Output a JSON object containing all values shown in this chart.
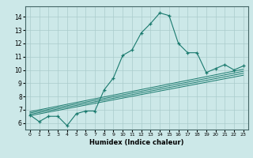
{
  "title": "",
  "xlabel": "Humidex (Indice chaleur)",
  "bg_color": "#cce8e8",
  "grid_color": "#aacccc",
  "line_color": "#1a7a6e",
  "xlim": [
    -0.5,
    23.5
  ],
  "ylim": [
    5.5,
    14.8
  ],
  "yticks": [
    6,
    7,
    8,
    9,
    10,
    11,
    12,
    13,
    14
  ],
  "xticks": [
    0,
    1,
    2,
    3,
    4,
    5,
    6,
    7,
    8,
    9,
    10,
    11,
    12,
    13,
    14,
    15,
    16,
    17,
    18,
    19,
    20,
    21,
    22,
    23
  ],
  "main_line_x": [
    0,
    1,
    2,
    3,
    4,
    5,
    6,
    7,
    8,
    9,
    10,
    11,
    12,
    13,
    14,
    15,
    16,
    17,
    18,
    19,
    20,
    21,
    22,
    23
  ],
  "main_line_y": [
    6.6,
    6.1,
    6.5,
    6.5,
    5.8,
    6.7,
    6.9,
    6.9,
    8.5,
    9.4,
    11.1,
    11.5,
    12.8,
    13.5,
    14.3,
    14.1,
    12.0,
    11.3,
    11.3,
    9.8,
    10.1,
    10.4,
    10.0,
    10.3
  ],
  "diag_lines": [
    {
      "x": [
        0,
        23
      ],
      "y": [
        6.55,
        9.6
      ]
    },
    {
      "x": [
        0,
        23
      ],
      "y": [
        6.65,
        9.75
      ]
    },
    {
      "x": [
        0,
        23
      ],
      "y": [
        6.75,
        9.9
      ]
    },
    {
      "x": [
        0,
        23
      ],
      "y": [
        6.85,
        10.05
      ]
    }
  ]
}
